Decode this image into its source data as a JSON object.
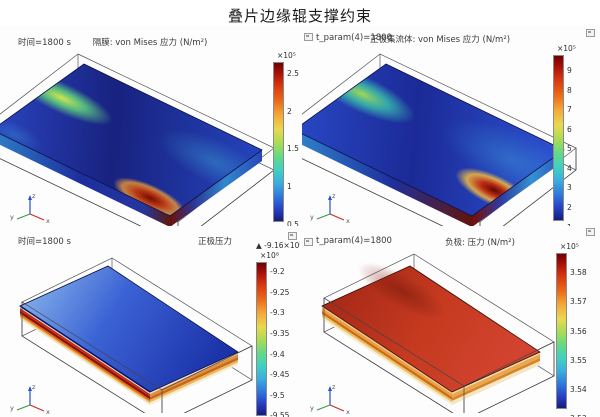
{
  "page": {
    "title": "叠片边缘辊支撑约束"
  },
  "icons": {
    "float_window_icon": "small grey window square",
    "max_marker": "▲"
  },
  "axis_triad": {
    "x": "x",
    "y": "y",
    "z": "z"
  },
  "colors": {
    "colorbar_top": "#6e0000",
    "colorbar_bottom": "#131c7e",
    "axis_x": "#c43024",
    "axis_y": "#3a9a46",
    "axis_z": "#2850c8"
  },
  "plots": {
    "top_left": {
      "time_label": "时间=1800 s",
      "title": "隔膜: von Mises 应力 (N/m²)",
      "scale": "×10⁵",
      "ticks": [
        "2.5",
        "2",
        "1.5",
        "1",
        "0.5"
      ]
    },
    "top_right": {
      "time_label": "t_param(4)=1800",
      "title": "正极集流体: von Mises 应力 (N/m²)",
      "scale": "×10⁵",
      "ticks": [
        "9",
        "8",
        "7",
        "6",
        "5",
        "4",
        "3",
        "2",
        "1"
      ]
    },
    "bottom_left": {
      "time_label": "时间=1800 s",
      "title": "正极压力",
      "max_label": "▲ -9.16×10⁸",
      "scale": "×10⁸",
      "ticks": [
        "-9.2",
        "-9.25",
        "-9.3",
        "-9.35",
        "-9.4",
        "-9.45",
        "-9.5",
        "-9.55"
      ]
    },
    "bottom_right": {
      "time_label": "t_param(4)=1800",
      "title": "负极: 压力 (N/m²)",
      "scale": "×10⁵",
      "ticks": [
        "3.58",
        "3.57",
        "3.56",
        "3.55",
        "3.54",
        "3.53"
      ]
    }
  },
  "chart_data": [
    {
      "type": "heatmap",
      "title": "隔膜: von Mises 应力 (N/m²)",
      "subtitle": "时间=1800 s",
      "legend_position": "right",
      "colorbar": {
        "scale_factor": 100000,
        "ticks": [
          2.5,
          2,
          1.5,
          1,
          0.5
        ],
        "orientation": "vertical",
        "palette": "rainbow (dark red high → dark blue low)"
      },
      "annotations": [
        "green-yellow stress concentration along upper-left long edge",
        "dark red stress maximum near lower edge center-right",
        "cyan band along right edge",
        "undeformed wireframe box around slab"
      ]
    },
    {
      "type": "heatmap",
      "title": "正极集流体: von Mises 应力 (N/m²)",
      "subtitle": "t_param(4)=1800",
      "legend_position": "right",
      "colorbar": {
        "scale_factor": 100000,
        "ticks": [
          9,
          8,
          7,
          6,
          5,
          4,
          3,
          2,
          1
        ],
        "orientation": "vertical",
        "palette": "rainbow (dark red high → dark blue low)"
      },
      "annotations": [
        "teal-green stress band near upper-left edge",
        "intense dark red maximum near lower-right edge",
        "cyan haze on right half",
        "undeformed wireframe box around slab"
      ]
    },
    {
      "type": "heatmap",
      "title": "正极压力",
      "subtitle": "时间=1800 s",
      "legend_position": "right",
      "max_marker_value": -916000000,
      "colorbar": {
        "scale_factor": 100000000,
        "ticks": [
          -9.2,
          -9.25,
          -9.3,
          -9.35,
          -9.4,
          -9.45,
          -9.5,
          -9.55
        ],
        "orientation": "vertical",
        "palette": "rainbow (dark red high → dark blue low)"
      },
      "annotations": [
        "nearly uniform blue top surface, lighter toward upper-left",
        "red/orange/yellow laminated layer edges visible on front sides",
        "undeformed wireframe box below slab"
      ]
    },
    {
      "type": "heatmap",
      "title": "负极: 压力 (N/m²)",
      "subtitle": "t_param(4)=1800",
      "legend_position": "right",
      "colorbar": {
        "scale_factor": 100000,
        "ticks": [
          3.58,
          3.57,
          3.56,
          3.55,
          3.54,
          3.53
        ],
        "orientation": "vertical",
        "palette": "rainbow (dark red high → dark blue low)"
      },
      "annotations": [
        "nearly uniform red top surface",
        "orange/yellow layer edges on front sides",
        "undeformed wireframe box raised above slab at back"
      ]
    }
  ]
}
